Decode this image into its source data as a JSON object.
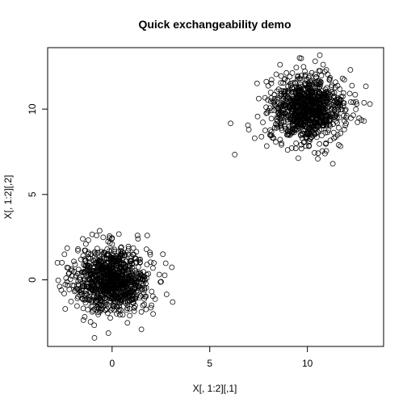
{
  "chart_data": {
    "type": "scatter",
    "title": "Quick exchangeability demo",
    "xlabel": "X[, 1:2][,1]",
    "ylabel": "X[, 1:2][,2]",
    "xlim": [
      -3.3,
      13.9
    ],
    "ylim": [
      -3.9,
      13.6
    ],
    "x_ticks": [
      0,
      5,
      10
    ],
    "y_ticks": [
      0,
      5,
      10
    ],
    "grid": false,
    "legend": "none",
    "series": [
      {
        "cluster_center": [
          0,
          0
        ],
        "cluster_sd": 0.95,
        "n_points": 1000,
        "x": [
          -2.8,
          -2.6,
          -2.4,
          -1.9,
          -1.5,
          -1.2,
          -0.8,
          -0.9,
          0.9,
          1.3,
          1.5,
          2.1,
          2.6,
          3.1,
          1.8,
          1.4,
          -0.6,
          -0.3,
          0.2,
          0.5,
          0.9,
          -1.7,
          -2.2,
          1.1
        ],
        "y": [
          1.0,
          -0.6,
          -1.7,
          0.9,
          2.4,
          1.6,
          2.6,
          -3.4,
          -2.1,
          2.6,
          -2.9,
          -2.0,
          1.5,
          -1.3,
          2.6,
          0.2,
          0.7,
          -0.4,
          0.1,
          -0.2,
          0.6,
          -0.3,
          0.4,
          -1.1
        ]
      },
      {
        "cluster_center": [
          10,
          10
        ],
        "cluster_sd": 0.95,
        "n_points": 1000,
        "x": [
          7.0,
          7.3,
          8.0,
          8.6,
          9.1,
          9.6,
          10.4,
          10.9,
          11.3,
          11.8,
          12.2,
          12.9,
          13.2,
          9.4,
          11.6,
          10.2,
          9.8,
          10.6
        ],
        "y": [
          8.8,
          8.3,
          9.9,
          12.6,
          11.9,
          13.0,
          12.8,
          7.4,
          6.8,
          11.8,
          12.3,
          9.3,
          10.3,
          7.7,
          7.9,
          10.1,
          9.6,
          10.4
        ]
      }
    ]
  }
}
